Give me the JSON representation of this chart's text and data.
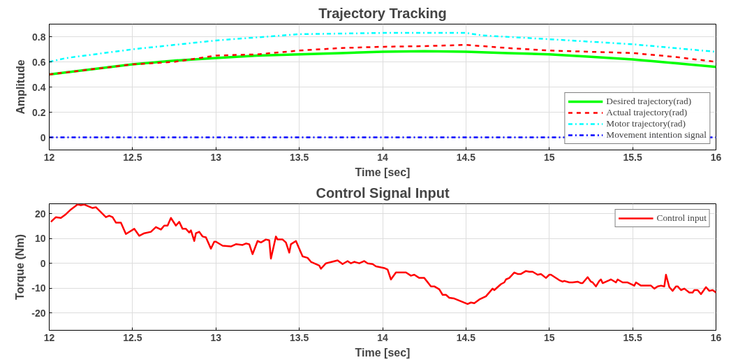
{
  "chart_data": [
    {
      "type": "line",
      "title": "Trajectory Tracking",
      "xlabel": "Time [sec]",
      "ylabel": "Amplitude",
      "xlim": [
        12,
        16
      ],
      "xticks": [
        12,
        12.5,
        13,
        13.5,
        14,
        14.5,
        15,
        15.5,
        16
      ],
      "ylim": [
        -0.1,
        0.9
      ],
      "yticks": [
        0,
        0.2,
        0.4,
        0.6,
        0.8
      ],
      "grid": true,
      "legend": "bottom right",
      "series": [
        {
          "name": "Desired trajectory(rad)",
          "color": "#00ff00",
          "line_style": "solid",
          "x": [
            12,
            12.25,
            12.5,
            12.75,
            13,
            13.25,
            13.5,
            13.75,
            14,
            14.25,
            14.5,
            14.75,
            15,
            15.25,
            15.5,
            15.75,
            16
          ],
          "values": [
            0.5,
            0.54,
            0.58,
            0.61,
            0.63,
            0.65,
            0.66,
            0.67,
            0.68,
            0.685,
            0.68,
            0.67,
            0.66,
            0.64,
            0.62,
            0.59,
            0.56
          ]
        },
        {
          "name": "Actual trajectory(rad)",
          "color": "#ff0000",
          "line_style": "dashed",
          "x": [
            12,
            12.25,
            12.5,
            12.75,
            13,
            13.25,
            13.5,
            13.75,
            14,
            14.25,
            14.5,
            14.75,
            15,
            15.25,
            15.5,
            15.75,
            16
          ],
          "values": [
            0.5,
            0.54,
            0.58,
            0.6,
            0.65,
            0.66,
            0.69,
            0.71,
            0.72,
            0.725,
            0.735,
            0.71,
            0.69,
            0.68,
            0.67,
            0.64,
            0.6
          ]
        },
        {
          "name": "Motor trajectory(rad)",
          "color": "#00ffff",
          "line_style": "dashdot",
          "x": [
            12,
            12.1,
            12.5,
            13,
            13.5,
            14,
            14.5,
            14.6,
            15,
            15.5,
            16
          ],
          "values": [
            0.6,
            0.63,
            0.7,
            0.77,
            0.82,
            0.83,
            0.83,
            0.81,
            0.78,
            0.74,
            0.68
          ]
        },
        {
          "name": "Movement intention signal",
          "color": "#0000ff",
          "line_style": "dashdot",
          "x": [
            12,
            16
          ],
          "values": [
            0,
            0
          ]
        }
      ]
    },
    {
      "type": "line",
      "title": "Control Signal Input",
      "xlabel": "Time [sec]",
      "ylabel": "Torque (Nm)",
      "xlim": [
        12,
        16
      ],
      "xticks": [
        12,
        12.5,
        13,
        13.5,
        14,
        14.5,
        15,
        15.5,
        16
      ],
      "ylim": [
        -27,
        24
      ],
      "yticks": [
        -20,
        -10,
        0,
        10,
        20
      ],
      "grid": true,
      "legend": "top right",
      "series": [
        {
          "name": "Control input",
          "color": "#ff0000",
          "line_style": "solid",
          "x": [
            12.01,
            12.04,
            12.07,
            12.1,
            12.13,
            12.17,
            12.19,
            12.21,
            12.26,
            12.28,
            12.34,
            12.36,
            12.38,
            12.4,
            12.43,
            12.46,
            12.51,
            12.54,
            12.57,
            12.61,
            12.64,
            12.67,
            12.69,
            12.71,
            12.73,
            12.76,
            12.78,
            12.8,
            12.82,
            12.84,
            12.85,
            12.87,
            12.88,
            12.9,
            12.92,
            12.94,
            12.97,
            12.99,
            13.0,
            13.04,
            13.09,
            13.12,
            13.16,
            13.18,
            13.2,
            13.22,
            13.25,
            13.27,
            13.3,
            13.32,
            13.33,
            13.36,
            13.37,
            13.4,
            13.42,
            13.44,
            13.45,
            13.48,
            13.5,
            13.52,
            13.55,
            13.57,
            13.62,
            13.63,
            13.66,
            13.73,
            13.76,
            13.79,
            13.81,
            13.83,
            13.86,
            13.89,
            13.91,
            13.94,
            13.96,
            14.01,
            14.03,
            14.05,
            14.08,
            14.14,
            14.17,
            14.19,
            14.22,
            14.25,
            14.29,
            14.31,
            14.34,
            14.36,
            14.38,
            14.4,
            14.43,
            14.51,
            14.53,
            14.55,
            14.58,
            14.62,
            14.66,
            14.67,
            14.71,
            14.73,
            14.74,
            14.76,
            14.79,
            14.81,
            14.83,
            14.86,
            14.88,
            14.9,
            14.93,
            14.95,
            14.98,
            15.0,
            15.01,
            15.06,
            15.08,
            15.09,
            15.12,
            15.14,
            15.17,
            15.19,
            15.2,
            15.23,
            15.25,
            15.26,
            15.28,
            15.3,
            15.31,
            15.32,
            15.36,
            15.37,
            15.4,
            15.41,
            15.44,
            15.47,
            15.51,
            15.52,
            15.55,
            15.61,
            15.63,
            15.65,
            15.67,
            15.69,
            15.7,
            15.72,
            15.74,
            15.76,
            15.77,
            15.79,
            15.81,
            15.84,
            15.86,
            15.87,
            15.89,
            15.91,
            15.94,
            15.96,
            15.98,
            16.0
          ],
          "values": [
            16.7,
            18.6,
            18.3,
            19.8,
            21.7,
            23.7,
            23.4,
            23.7,
            22.3,
            22.6,
            18.6,
            19.2,
            18.6,
            16.4,
            16.4,
            11.8,
            13.9,
            11.1,
            12.1,
            12.7,
            14.6,
            13.6,
            15.2,
            15.2,
            18.3,
            15.2,
            16.7,
            13.9,
            13.9,
            12.4,
            13.3,
            9,
            12.1,
            12.7,
            10.8,
            10.5,
            5.9,
            8.7,
            8.7,
            7.1,
            6.8,
            7.7,
            7.4,
            8,
            7.7,
            3.7,
            9,
            8.4,
            9.6,
            9.3,
            1.9,
            10.8,
            9.6,
            9.6,
            8.4,
            4.3,
            7.7,
            9,
            5.9,
            2.8,
            2.2,
            0.6,
            -0.9,
            -2.2,
            0,
            1.2,
            -0.3,
            0.9,
            0,
            0.6,
            0,
            0.9,
            0,
            -0.3,
            -1.2,
            -1.9,
            -2.5,
            -6.5,
            -3.7,
            -3.7,
            -5,
            -4.6,
            -5.9,
            -5.9,
            -9.3,
            -9.3,
            -10.5,
            -12.7,
            -12.7,
            -13.9,
            -14.2,
            -16.4,
            -15.8,
            -16.1,
            -14.6,
            -13.3,
            -10.2,
            -10.8,
            -8.4,
            -7.7,
            -6.5,
            -5.9,
            -3.7,
            -4.3,
            -4.3,
            -3.1,
            -3.4,
            -3.4,
            -4.6,
            -4.3,
            -5.9,
            -4.6,
            -4.6,
            -6.8,
            -7.4,
            -7.1,
            -7.7,
            -7.7,
            -7.4,
            -8,
            -8,
            -5.6,
            -7.4,
            -7.7,
            -9.3,
            -7.1,
            -6.5,
            -8,
            -6.8,
            -6.5,
            -7.7,
            -6.5,
            -7.7,
            -7.7,
            -9,
            -7.7,
            -9,
            -9,
            -10.2,
            -9.3,
            -9,
            -9.3,
            -4.6,
            -9.6,
            -11.1,
            -9.3,
            -9.3,
            -10.8,
            -10.2,
            -11.8,
            -11.8,
            -10.8,
            -10.8,
            -12.4,
            -9.6,
            -11.1,
            -10.8,
            -11.8
          ]
        }
      ]
    }
  ]
}
